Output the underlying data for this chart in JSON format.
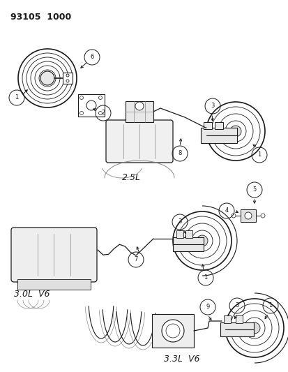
{
  "header": "93105  1000",
  "bg_color": "#ffffff",
  "line_color": "#1a1a1a",
  "label_2_5L": "2.5L",
  "label_3_0L": "3.0L  V6",
  "label_3_3L": "3.3L  V6",
  "fig_width": 4.14,
  "fig_height": 5.33,
  "dpi": 100
}
